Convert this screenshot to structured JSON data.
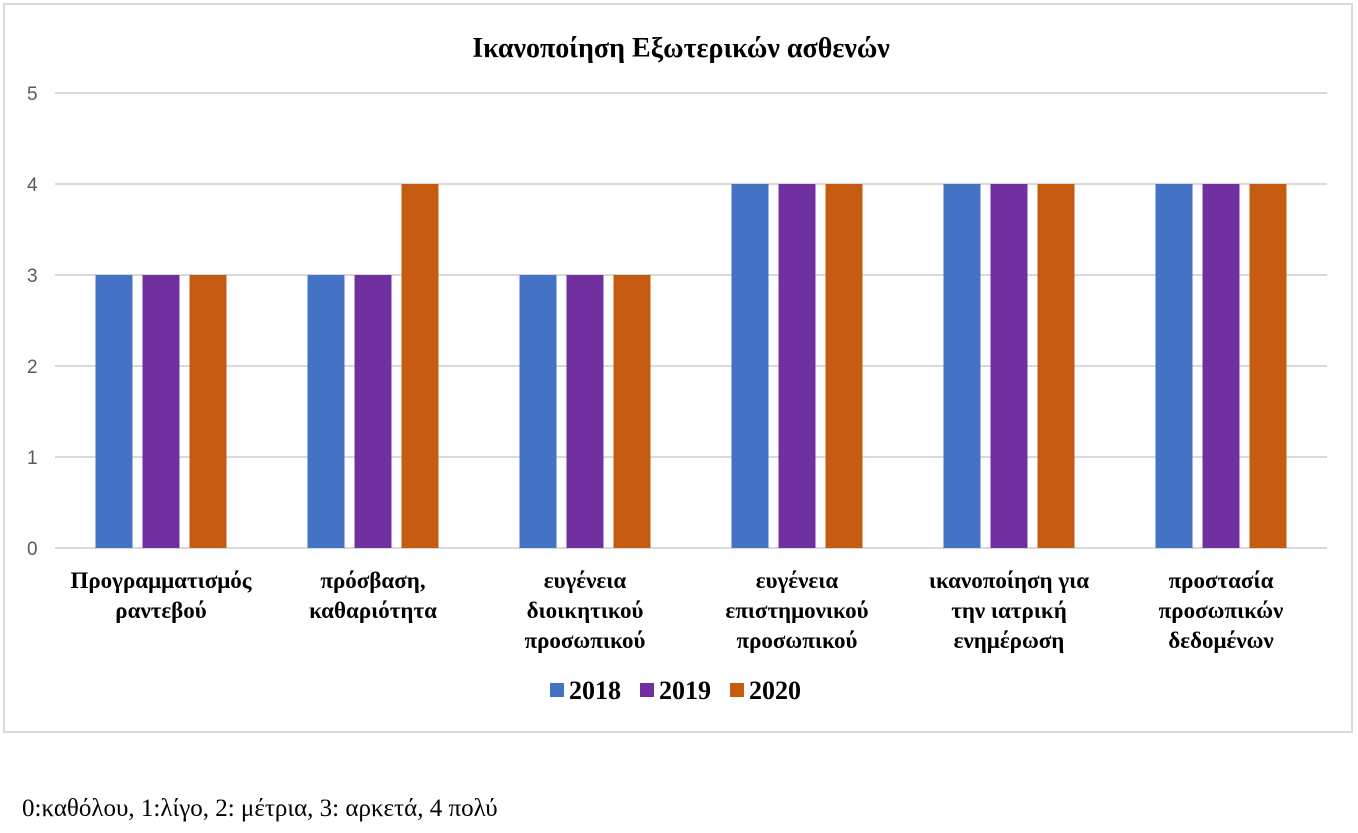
{
  "chart_data": {
    "type": "bar",
    "title": "Ικανοποίηση Εξωτερικών ασθενών",
    "categories": [
      [
        "Προγραμματισμός",
        "ραντεβού"
      ],
      [
        "πρόσβαση,",
        "καθαριότητα"
      ],
      [
        "ευγένεια",
        "διοικητικού",
        "προσωπικού"
      ],
      [
        "ευγένεια",
        "επιστημονικού",
        "προσωπικού"
      ],
      [
        "ικανοποίηση για",
        "την ιατρική",
        "ενημέρωση"
      ],
      [
        "προστασία",
        "προσωπικών",
        "δεδομένων"
      ]
    ],
    "series": [
      {
        "name": "2018",
        "color": "#4472C4",
        "values": [
          3,
          3,
          3,
          4,
          4,
          4
        ]
      },
      {
        "name": "2019",
        "color": "#7030A0",
        "values": [
          3,
          3,
          3,
          4,
          4,
          4
        ]
      },
      {
        "name": "2020",
        "color": "#C55A11",
        "values": [
          3,
          4,
          3,
          4,
          4,
          4
        ]
      }
    ],
    "ylim": [
      0,
      5
    ],
    "yticks": [
      "0",
      "1",
      "2",
      "3",
      "4",
      "5"
    ],
    "grid": true,
    "legend_position": "bottom",
    "gridline_color": "#d9d9d9"
  },
  "footnote": "0:καθόλου,  1:λίγο, 2: μέτρια, 3: αρκετά, 4 πολύ"
}
